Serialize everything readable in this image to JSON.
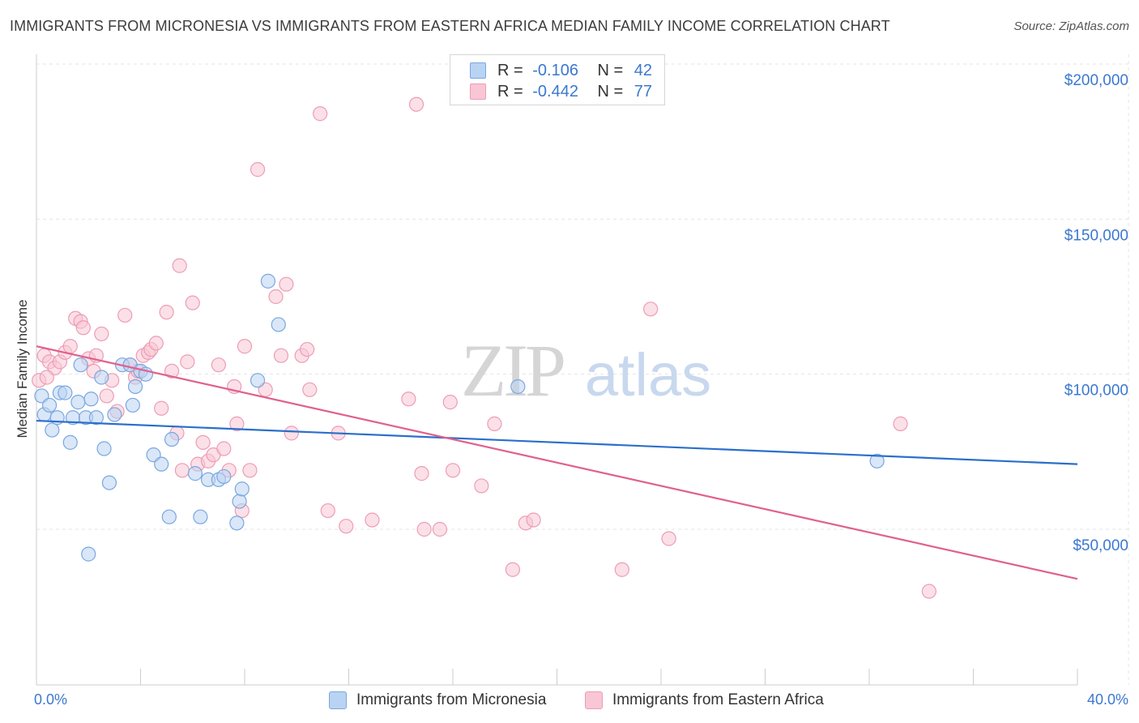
{
  "title": "IMMIGRANTS FROM MICRONESIA VS IMMIGRANTS FROM EASTERN AFRICA MEDIAN FAMILY INCOME CORRELATION CHART",
  "source": "Source: ZipAtlas.com",
  "watermark": {
    "zip": "ZIP",
    "atlas": "atlas"
  },
  "legend": {
    "r_label": "R =",
    "n_label": "N =",
    "rows": [
      {
        "r": "-0.106",
        "n": "42"
      },
      {
        "r": "-0.442",
        "n": "77"
      }
    ]
  },
  "colors": {
    "micronesia_fill": "#b9d3f3",
    "micronesia_stroke": "#7aa7df",
    "micronesia_line": "#2b6fcb",
    "eafrica_fill": "#f8c6d4",
    "eafrica_stroke": "#ee9cb6",
    "eafrica_line": "#e0608d",
    "axis_text": "#3b78d0"
  },
  "chart_data": {
    "type": "scatter",
    "title": "IMMIGRANTS FROM MICRONESIA VS IMMIGRANTS FROM EASTERN AFRICA MEDIAN FAMILY INCOME CORRELATION CHART",
    "xlabel": "",
    "ylabel": "Median Family Income",
    "xlim": [
      0,
      40
    ],
    "ylim": [
      8000,
      210000
    ],
    "x_tick_labels": [
      "0.0%",
      "40.0%"
    ],
    "y_ticks": [
      50000,
      100000,
      150000,
      200000
    ],
    "y_tick_labels": [
      "$50,000",
      "$100,000",
      "$150,000",
      "$200,000"
    ],
    "grid": true,
    "legend_position": "top-center",
    "series": [
      {
        "name": "Immigrants from Micronesia",
        "r": -0.106,
        "n": 42,
        "trend": {
          "x": [
            0,
            40
          ],
          "y": [
            85000,
            71000
          ]
        },
        "points": [
          [
            0.2,
            93000
          ],
          [
            0.3,
            87000
          ],
          [
            0.5,
            90000
          ],
          [
            0.6,
            82000
          ],
          [
            0.8,
            86000
          ],
          [
            0.9,
            94000
          ],
          [
            1.1,
            94000
          ],
          [
            1.3,
            78000
          ],
          [
            1.4,
            86000
          ],
          [
            1.6,
            91000
          ],
          [
            1.7,
            103000
          ],
          [
            1.9,
            86000
          ],
          [
            2.1,
            92000
          ],
          [
            2.3,
            86000
          ],
          [
            2.5,
            99000
          ],
          [
            2.6,
            76000
          ],
          [
            2.8,
            65000
          ],
          [
            3.0,
            87000
          ],
          [
            3.3,
            103000
          ],
          [
            3.6,
            103000
          ],
          [
            3.7,
            90000
          ],
          [
            3.8,
            96000
          ],
          [
            4.0,
            101000
          ],
          [
            4.2,
            100000
          ],
          [
            4.5,
            74000
          ],
          [
            4.8,
            71000
          ],
          [
            5.1,
            54000
          ],
          [
            5.2,
            79000
          ],
          [
            6.1,
            68000
          ],
          [
            6.3,
            54000
          ],
          [
            6.6,
            66000
          ],
          [
            7.0,
            66000
          ],
          [
            7.2,
            67000
          ],
          [
            7.7,
            52000
          ],
          [
            7.8,
            59000
          ],
          [
            7.9,
            63000
          ],
          [
            8.5,
            98000
          ],
          [
            8.9,
            130000
          ],
          [
            9.3,
            116000
          ],
          [
            2.0,
            42000
          ],
          [
            18.5,
            96000
          ],
          [
            32.3,
            72000
          ]
        ]
      },
      {
        "name": "Immigrants from Eastern Africa",
        "r": -0.442,
        "n": 77,
        "trend": {
          "x": [
            0,
            40
          ],
          "y": [
            109000,
            34000
          ]
        },
        "points": [
          [
            0.1,
            98000
          ],
          [
            0.3,
            106000
          ],
          [
            0.5,
            104000
          ],
          [
            0.7,
            102000
          ],
          [
            0.9,
            104000
          ],
          [
            1.1,
            107000
          ],
          [
            1.3,
            109000
          ],
          [
            1.5,
            118000
          ],
          [
            1.7,
            117000
          ],
          [
            1.8,
            115000
          ],
          [
            2.0,
            105000
          ],
          [
            2.2,
            101000
          ],
          [
            2.3,
            106000
          ],
          [
            2.5,
            113000
          ],
          [
            2.7,
            93000
          ],
          [
            2.9,
            98000
          ],
          [
            3.1,
            88000
          ],
          [
            3.4,
            119000
          ],
          [
            3.6,
            103000
          ],
          [
            3.8,
            99000
          ],
          [
            3.9,
            101000
          ],
          [
            4.1,
            106000
          ],
          [
            4.3,
            107000
          ],
          [
            4.4,
            108000
          ],
          [
            4.6,
            110000
          ],
          [
            4.8,
            89000
          ],
          [
            5.0,
            120000
          ],
          [
            5.2,
            101000
          ],
          [
            5.4,
            81000
          ],
          [
            5.5,
            135000
          ],
          [
            5.6,
            69000
          ],
          [
            5.8,
            104000
          ],
          [
            6.0,
            123000
          ],
          [
            6.2,
            71000
          ],
          [
            6.4,
            78000
          ],
          [
            6.6,
            72000
          ],
          [
            6.8,
            74000
          ],
          [
            7.0,
            103000
          ],
          [
            7.2,
            76000
          ],
          [
            7.4,
            69000
          ],
          [
            7.6,
            96000
          ],
          [
            7.7,
            84000
          ],
          [
            7.9,
            56000
          ],
          [
            8.0,
            109000
          ],
          [
            8.2,
            69000
          ],
          [
            8.5,
            166000
          ],
          [
            8.8,
            95000
          ],
          [
            9.2,
            125000
          ],
          [
            9.4,
            106000
          ],
          [
            9.6,
            129000
          ],
          [
            9.8,
            81000
          ],
          [
            10.2,
            106000
          ],
          [
            10.4,
            108000
          ],
          [
            10.5,
            95000
          ],
          [
            10.9,
            184000
          ],
          [
            11.2,
            56000
          ],
          [
            11.6,
            81000
          ],
          [
            11.9,
            51000
          ],
          [
            12.9,
            53000
          ],
          [
            14.3,
            92000
          ],
          [
            14.6,
            187000
          ],
          [
            14.8,
            68000
          ],
          [
            14.9,
            50000
          ],
          [
            15.5,
            50000
          ],
          [
            15.9,
            91000
          ],
          [
            16.0,
            69000
          ],
          [
            17.1,
            64000
          ],
          [
            17.6,
            84000
          ],
          [
            18.3,
            37000
          ],
          [
            18.8,
            52000
          ],
          [
            19.1,
            53000
          ],
          [
            22.5,
            37000
          ],
          [
            23.6,
            121000
          ],
          [
            24.3,
            47000
          ],
          [
            33.2,
            84000
          ],
          [
            34.3,
            30000
          ],
          [
            0.4,
            99000
          ]
        ]
      }
    ]
  }
}
